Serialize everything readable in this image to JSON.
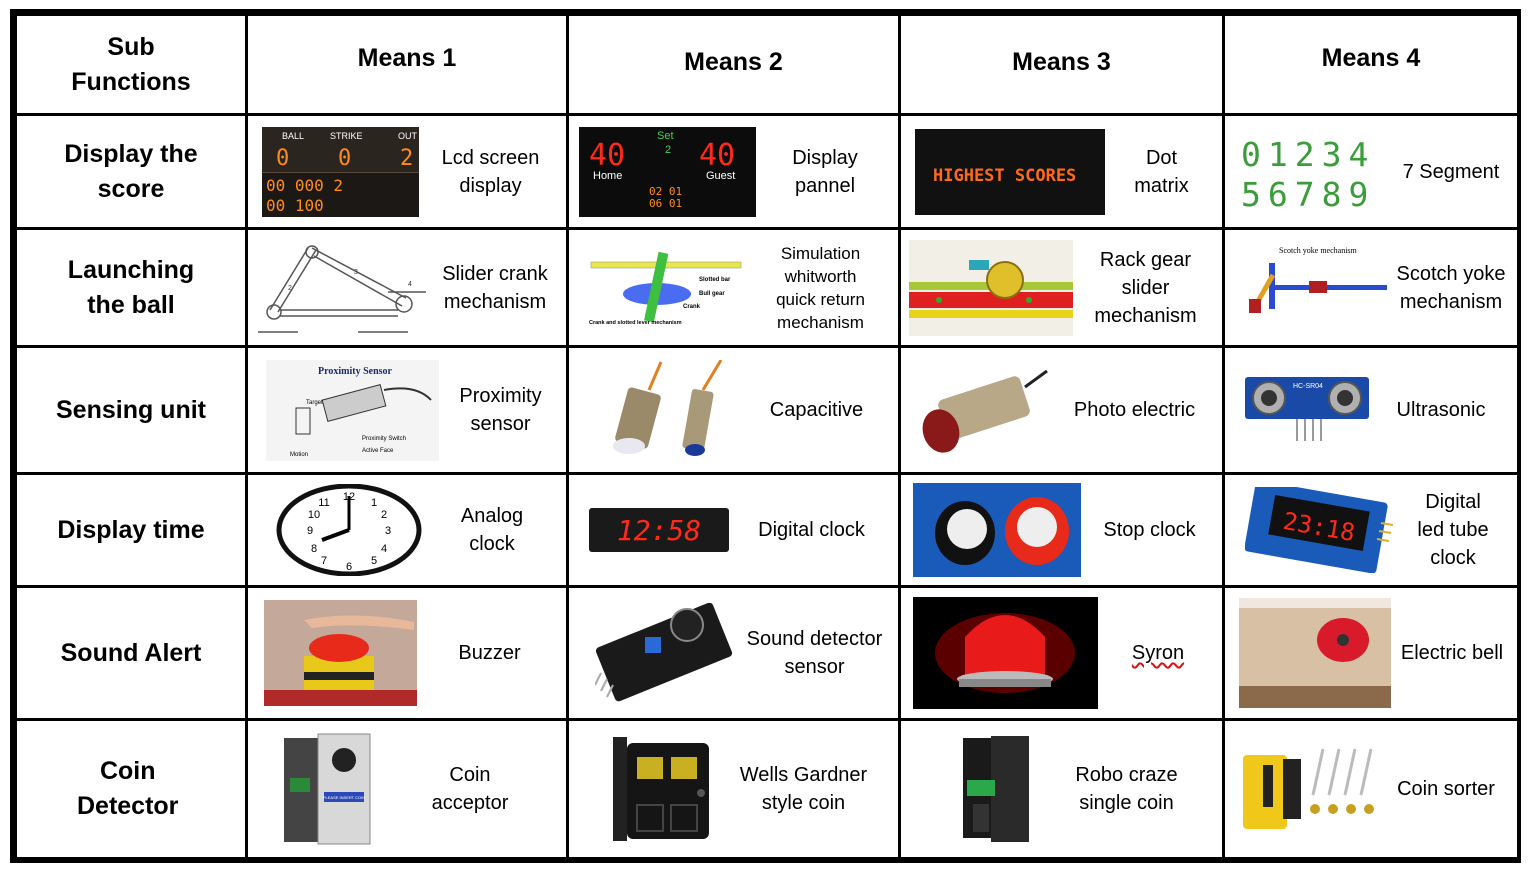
{
  "headers": [
    "Sub\nFunctions",
    "Means 1",
    "Means 2",
    "Means 3",
    "Means 4"
  ],
  "rows": [
    {
      "function": "Display the\nscore",
      "means": [
        {
          "icon": "scoreboard-lcd-icon",
          "caption": "Lcd screen\ndisplay",
          "image_text": {
            "ball": "BALL",
            "strike": "STRIKE",
            "out": "OUT",
            "b": "0",
            "s": "0",
            "o": "2"
          }
        },
        {
          "icon": "display-panel-icon",
          "caption": "Display\npannel",
          "image_text": {
            "home_score": "40",
            "guest_score": "40",
            "set_label": "Set",
            "set_val": "2",
            "home": "Home",
            "guest": "Guest"
          }
        },
        {
          "icon": "dot-matrix-icon",
          "caption": "Dot\nmatrix",
          "image_text": {
            "msg": "HIGHEST SCORES"
          }
        },
        {
          "icon": "seven-segment-icon",
          "caption": "7 Segment",
          "image_text": {
            "row1": "01234",
            "row2": "56789"
          }
        }
      ]
    },
    {
      "function": "Launching\nthe ball",
      "means": [
        {
          "icon": "slider-crank-icon",
          "caption": "Slider crank\nmechanism"
        },
        {
          "icon": "whitworth-mechanism-icon",
          "caption": "Simulation\nwhitworth\nquick return\nmechanism",
          "image_text": {
            "l1": "Slotted bar",
            "l2": "Bull gear",
            "l3": "Crank",
            "l4": "Crank and slotted lever mechanism"
          }
        },
        {
          "icon": "rack-gear-icon",
          "caption": "Rack gear\nslider\nmechanism"
        },
        {
          "icon": "scotch-yoke-icon",
          "caption": "Scotch yoke\nmechanism",
          "image_text": {
            "title": "Scotch yoke mechanism"
          }
        }
      ]
    },
    {
      "function": "Sensing unit",
      "means": [
        {
          "icon": "proximity-sensor-icon",
          "caption": "Proximity\nsensor",
          "image_text": {
            "title": "Proximity Sensor",
            "a": "Target",
            "b": "Proximity Switch",
            "c": "Active Face",
            "d": "Motion"
          }
        },
        {
          "icon": "capacitive-sensor-icon",
          "caption": "Capacitive"
        },
        {
          "icon": "photo-electric-icon",
          "caption": "Photo electric"
        },
        {
          "icon": "ultrasonic-sensor-icon",
          "caption": "Ultrasonic",
          "image_text": {
            "model": "HC-SR04"
          }
        }
      ]
    },
    {
      "function": "Display time",
      "means": [
        {
          "icon": "analog-clock-icon",
          "caption": "Analog\nclock"
        },
        {
          "icon": "digital-clock-icon",
          "caption": "Digital clock",
          "image_text": {
            "time": "12:58"
          }
        },
        {
          "icon": "stop-clock-icon",
          "caption": "Stop clock"
        },
        {
          "icon": "led-tube-clock-icon",
          "caption": "Digital\nled tube\nclock",
          "image_text": {
            "time": "23:18"
          }
        }
      ]
    },
    {
      "function": "Sound Alert",
      "means": [
        {
          "icon": "buzzer-icon",
          "caption": "Buzzer"
        },
        {
          "icon": "sound-detector-icon",
          "caption": "Sound detector\nsensor"
        },
        {
          "icon": "siren-icon",
          "caption": "Syron"
        },
        {
          "icon": "electric-bell-icon",
          "caption": "Electric bell"
        }
      ]
    },
    {
      "function": "Coin\nDetector",
      "means": [
        {
          "icon": "coin-acceptor-icon",
          "caption": "Coin\nacceptor",
          "image_text": {
            "plate": "PLEASE INSERT COIN"
          }
        },
        {
          "icon": "wells-gardner-coin-icon",
          "caption": "Wells Gardner\nstyle coin"
        },
        {
          "icon": "robo-craze-coin-icon",
          "caption": "Robo craze\nsingle coin"
        },
        {
          "icon": "coin-sorter-icon",
          "caption": "Coin sorter"
        }
      ]
    }
  ],
  "colors": {
    "border": "#000000",
    "led_red": "#ff3b1f",
    "seg_green": "#3a9d3a",
    "amber": "#ff8c1a"
  }
}
